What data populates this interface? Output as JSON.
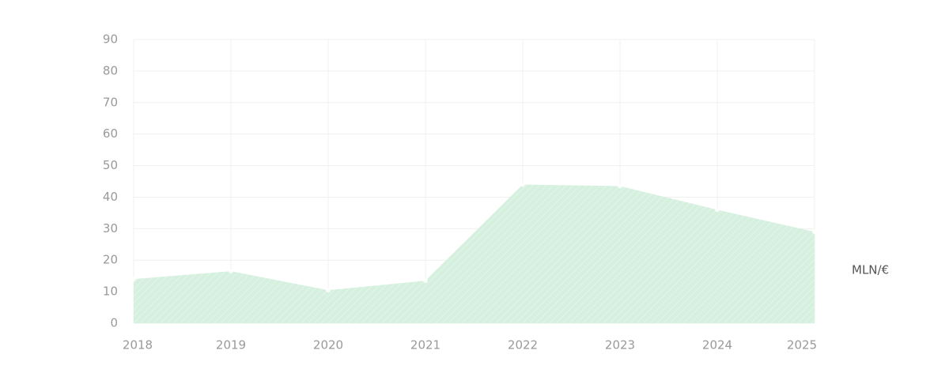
{
  "chart_data": {
    "type": "area",
    "unit_label": "MLN/€",
    "categories": [
      "2018",
      "2019",
      "2020",
      "2021",
      "2022",
      "2023",
      "2024",
      "2025"
    ],
    "values": [
      14,
      16.5,
      10.5,
      13.5,
      44,
      43.5,
      36,
      29
    ],
    "color": "#d6f0df",
    "ylim": [
      0,
      90
    ],
    "yticks": [
      0,
      10,
      20,
      30,
      40,
      50,
      60,
      70,
      80,
      90
    ],
    "grid": true
  }
}
